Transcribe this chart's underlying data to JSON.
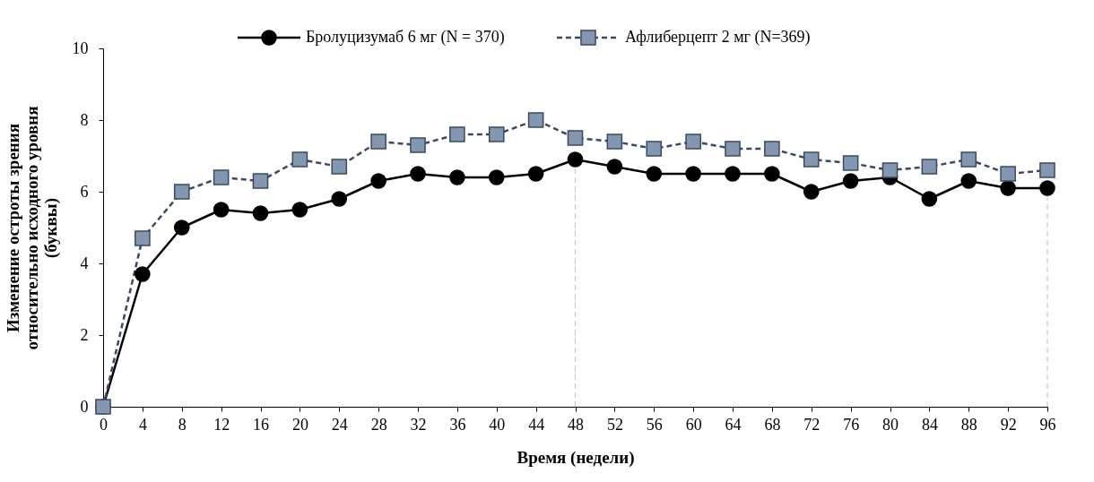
{
  "chart_data": {
    "type": "line",
    "xlabel": "Время (недели)",
    "ylabel": "Изменение остроты зрения\nотносительно исходного уровня\n(буквы)",
    "x": [
      0,
      4,
      8,
      12,
      16,
      20,
      24,
      28,
      32,
      36,
      40,
      44,
      48,
      52,
      56,
      60,
      64,
      68,
      72,
      76,
      80,
      84,
      88,
      92,
      96
    ],
    "series": [
      {
        "name": "Бролуцизумаб 6 мг (N = 370)",
        "color": "#000000",
        "marker": "circle",
        "line_style": "solid",
        "values": [
          0,
          3.7,
          5.0,
          5.5,
          5.4,
          5.5,
          5.8,
          6.3,
          6.5,
          6.4,
          6.4,
          6.5,
          6.9,
          6.7,
          6.5,
          6.5,
          6.5,
          6.5,
          6.0,
          6.3,
          6.4,
          5.8,
          6.3,
          6.1,
          6.1
        ]
      },
      {
        "name": "Афлиберцепт 2 мг (N=369)",
        "color": "#8497b0",
        "marker": "square",
        "line_style": "dashed",
        "values": [
          0,
          4.7,
          6.0,
          6.4,
          6.3,
          6.9,
          6.7,
          7.4,
          7.3,
          7.6,
          7.6,
          8.0,
          7.5,
          7.4,
          7.2,
          7.4,
          7.2,
          7.2,
          6.9,
          6.8,
          6.6,
          6.7,
          6.9,
          6.5,
          6.6
        ]
      }
    ],
    "xlim": [
      0,
      96
    ],
    "xticks": [
      0,
      4,
      8,
      12,
      16,
      20,
      24,
      28,
      32,
      36,
      40,
      44,
      48,
      52,
      56,
      60,
      64,
      68,
      72,
      76,
      80,
      84,
      88,
      92,
      96
    ],
    "ylim": [
      0,
      10
    ],
    "yticks": [
      0,
      2,
      4,
      6,
      8,
      10
    ],
    "ref_lines": [
      {
        "axis": "x",
        "value": 48,
        "color": "#c8c8c8",
        "line_style": "dashed"
      },
      {
        "axis": "x",
        "value": 96,
        "color": "#c8c8c8",
        "line_style": "dashed"
      }
    ],
    "grid": false,
    "legend": "top"
  }
}
